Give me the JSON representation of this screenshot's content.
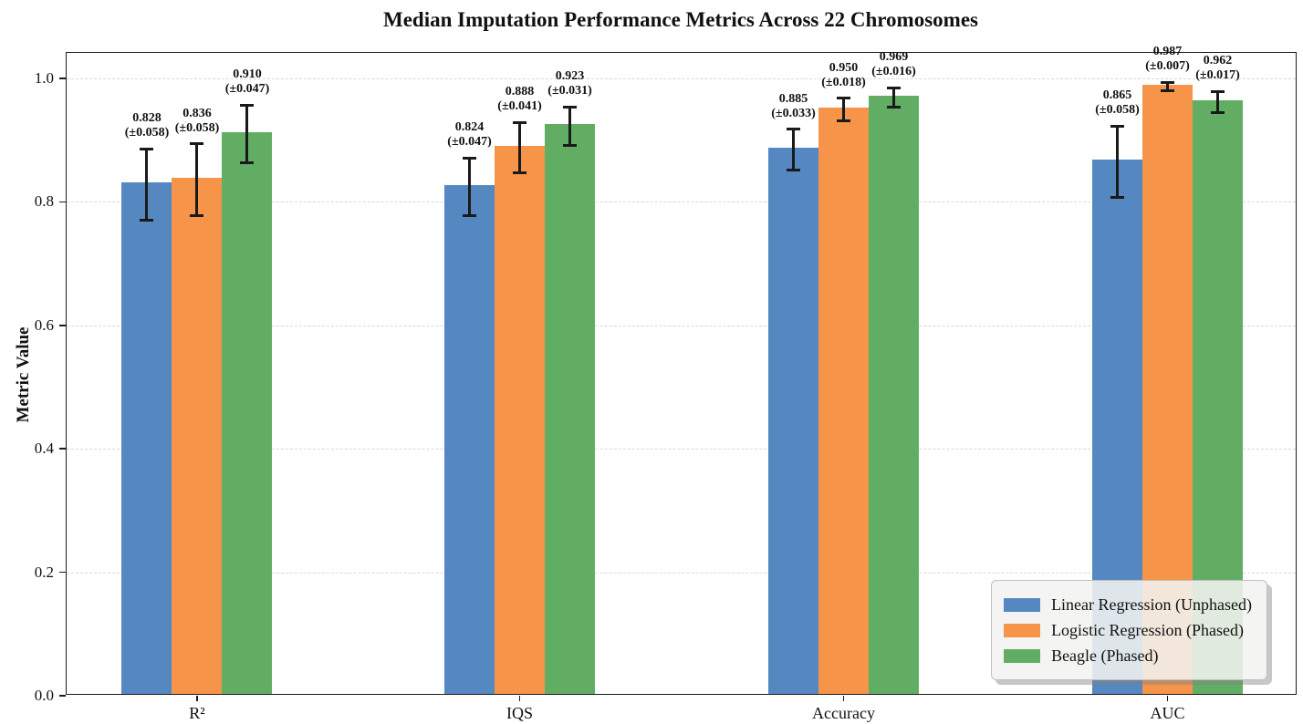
{
  "chart_data": {
    "type": "bar",
    "title": "Median Imputation Performance Metrics Across 22 Chromosomes",
    "xlabel": "",
    "ylabel": "Metric Value",
    "categories": [
      "R²",
      "IQS",
      "Accuracy",
      "AUC"
    ],
    "series": [
      {
        "name": "Linear Regression (Unphased)",
        "color": "#5588C1",
        "values": [
          0.828,
          0.824,
          0.885,
          0.865
        ],
        "errors": [
          0.058,
          0.047,
          0.033,
          0.058
        ]
      },
      {
        "name": "Logistic Regression (Phased)",
        "color": "#F6954A",
        "values": [
          0.836,
          0.888,
          0.95,
          0.987
        ],
        "errors": [
          0.058,
          0.041,
          0.018,
          0.007
        ]
      },
      {
        "name": "Beagle (Phased)",
        "color": "#61AD63",
        "values": [
          0.91,
          0.923,
          0.969,
          0.962
        ],
        "errors": [
          0.047,
          0.031,
          0.016,
          0.017
        ]
      }
    ],
    "annotation_format": "{value}\n(±{error})",
    "error_bar_color": "#1a1a1a",
    "yticks": [
      "0.0",
      "0.2",
      "0.4",
      "0.6",
      "0.8",
      "1.0"
    ],
    "ylim": [
      0,
      1.0414
    ],
    "grid": {
      "axis": "y",
      "style": "dashed",
      "color": "#d9d9d9"
    },
    "legend": {
      "position": "lower right"
    }
  }
}
